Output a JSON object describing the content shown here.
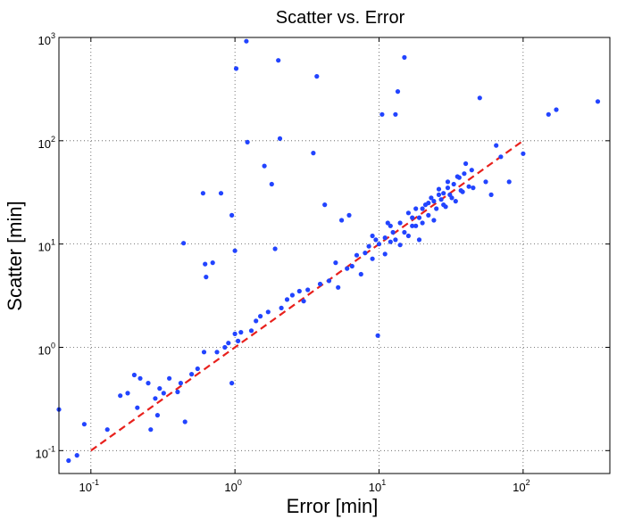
{
  "chart_data": {
    "type": "scatter",
    "title": "Scatter vs. Error",
    "xlabel": "Error [min]",
    "ylabel": "Scatter [min]",
    "xscale": "log",
    "yscale": "log",
    "xlim": [
      0.06,
      400
    ],
    "ylim": [
      0.06,
      1000
    ],
    "grid": true,
    "x_ticks": [
      {
        "base": "10",
        "exp": "-1",
        "value": 0.1
      },
      {
        "base": "10",
        "exp": "0",
        "value": 1
      },
      {
        "base": "10",
        "exp": "1",
        "value": 10
      },
      {
        "base": "10",
        "exp": "2",
        "value": 100
      }
    ],
    "y_ticks": [
      {
        "base": "10",
        "exp": "-1",
        "value": 0.1
      },
      {
        "base": "10",
        "exp": "0",
        "value": 1
      },
      {
        "base": "10",
        "exp": "1",
        "value": 10
      },
      {
        "base": "10",
        "exp": "2",
        "value": 100
      },
      {
        "base": "10",
        "exp": "3",
        "value": 1000
      }
    ],
    "colors": {
      "points": "#2244ff",
      "reference_line": "#e8201c",
      "grid": "#555555"
    },
    "reference_line": {
      "style": "dashed",
      "x": [
        0.1,
        100
      ],
      "y": [
        0.1,
        100
      ]
    },
    "series": [
      {
        "points": [
          [
            0.06,
            0.25
          ],
          [
            0.07,
            0.08
          ],
          [
            0.08,
            0.09
          ],
          [
            0.09,
            0.18
          ],
          [
            0.13,
            0.16
          ],
          [
            0.16,
            0.34
          ],
          [
            0.18,
            0.36
          ],
          [
            0.2,
            0.54
          ],
          [
            0.21,
            0.26
          ],
          [
            0.22,
            0.5
          ],
          [
            0.25,
            0.45
          ],
          [
            0.26,
            0.16
          ],
          [
            0.28,
            0.32
          ],
          [
            0.29,
            0.22
          ],
          [
            0.3,
            0.4
          ],
          [
            0.32,
            0.36
          ],
          [
            0.35,
            0.5
          ],
          [
            0.4,
            0.37
          ],
          [
            0.42,
            0.45
          ],
          [
            0.44,
            10.2
          ],
          [
            0.45,
            0.19
          ],
          [
            0.5,
            0.55
          ],
          [
            0.55,
            0.62
          ],
          [
            0.6,
            31
          ],
          [
            0.61,
            0.9
          ],
          [
            0.62,
            6.4
          ],
          [
            0.63,
            4.8
          ],
          [
            0.7,
            6.6
          ],
          [
            0.75,
            0.9
          ],
          [
            0.8,
            31
          ],
          [
            0.85,
            1.0
          ],
          [
            0.9,
            1.1
          ],
          [
            0.95,
            19
          ],
          [
            0.95,
            0.45
          ],
          [
            1.0,
            8.6
          ],
          [
            1.0,
            1.35
          ],
          [
            1.02,
            500
          ],
          [
            1.05,
            1.15
          ],
          [
            1.1,
            1.4
          ],
          [
            1.2,
            920
          ],
          [
            1.22,
            97
          ],
          [
            1.3,
            1.45
          ],
          [
            1.4,
            1.8
          ],
          [
            1.5,
            2.0
          ],
          [
            1.6,
            57
          ],
          [
            1.7,
            2.2
          ],
          [
            1.8,
            38
          ],
          [
            1.9,
            9.0
          ],
          [
            2.0,
            600
          ],
          [
            2.05,
            105
          ],
          [
            2.1,
            2.4
          ],
          [
            2.3,
            2.9
          ],
          [
            2.5,
            3.2
          ],
          [
            2.8,
            3.5
          ],
          [
            3.0,
            2.8
          ],
          [
            3.2,
            3.6
          ],
          [
            3.5,
            76
          ],
          [
            3.7,
            420
          ],
          [
            3.9,
            4.1
          ],
          [
            4.2,
            24
          ],
          [
            4.5,
            4.4
          ],
          [
            5.0,
            6.6
          ],
          [
            5.2,
            3.8
          ],
          [
            5.5,
            17
          ],
          [
            6.0,
            5.8
          ],
          [
            6.2,
            19
          ],
          [
            6.5,
            6.1
          ],
          [
            7.0,
            7.8
          ],
          [
            7.5,
            5.1
          ],
          [
            8.0,
            8.2
          ],
          [
            8.5,
            9.5
          ],
          [
            9.0,
            7.2
          ],
          [
            9.5,
            11
          ],
          [
            9.8,
            1.3
          ],
          [
            10.5,
            180
          ],
          [
            11,
            11.5
          ],
          [
            11.5,
            16
          ],
          [
            12,
            10.5
          ],
          [
            12.5,
            13
          ],
          [
            13,
            180
          ],
          [
            13.5,
            300
          ],
          [
            14,
            9.8
          ],
          [
            15,
            640
          ],
          [
            16,
            12
          ],
          [
            17,
            18
          ],
          [
            18,
            15
          ],
          [
            19,
            11
          ],
          [
            20,
            22
          ],
          [
            22,
            25
          ],
          [
            24,
            17
          ],
          [
            26,
            30
          ],
          [
            28,
            24
          ],
          [
            30,
            35
          ],
          [
            32,
            28
          ],
          [
            35,
            45
          ],
          [
            38,
            32
          ],
          [
            40,
            60
          ],
          [
            45,
            35
          ],
          [
            50,
            260
          ],
          [
            55,
            40
          ],
          [
            60,
            30
          ],
          [
            65,
            90
          ],
          [
            70,
            70
          ],
          [
            80,
            40
          ],
          [
            100,
            75
          ],
          [
            150,
            180
          ],
          [
            170,
            200
          ],
          [
            330,
            240
          ],
          [
            9,
            12
          ],
          [
            10,
            10
          ],
          [
            11,
            8
          ],
          [
            12,
            15
          ],
          [
            13,
            11
          ],
          [
            14,
            16
          ],
          [
            15,
            13
          ],
          [
            16,
            20
          ],
          [
            17,
            15
          ],
          [
            18,
            22
          ],
          [
            19,
            18
          ],
          [
            20,
            16
          ],
          [
            21,
            24
          ],
          [
            22,
            19
          ],
          [
            23,
            28
          ],
          [
            24,
            26
          ],
          [
            25,
            22
          ],
          [
            26,
            34
          ],
          [
            27,
            27
          ],
          [
            28,
            31
          ],
          [
            29,
            23
          ],
          [
            30,
            40
          ],
          [
            31,
            30
          ],
          [
            33,
            38
          ],
          [
            34,
            26
          ],
          [
            36,
            44
          ],
          [
            37,
            33
          ],
          [
            39,
            48
          ],
          [
            42,
            36
          ],
          [
            44,
            52
          ]
        ]
      }
    ]
  }
}
